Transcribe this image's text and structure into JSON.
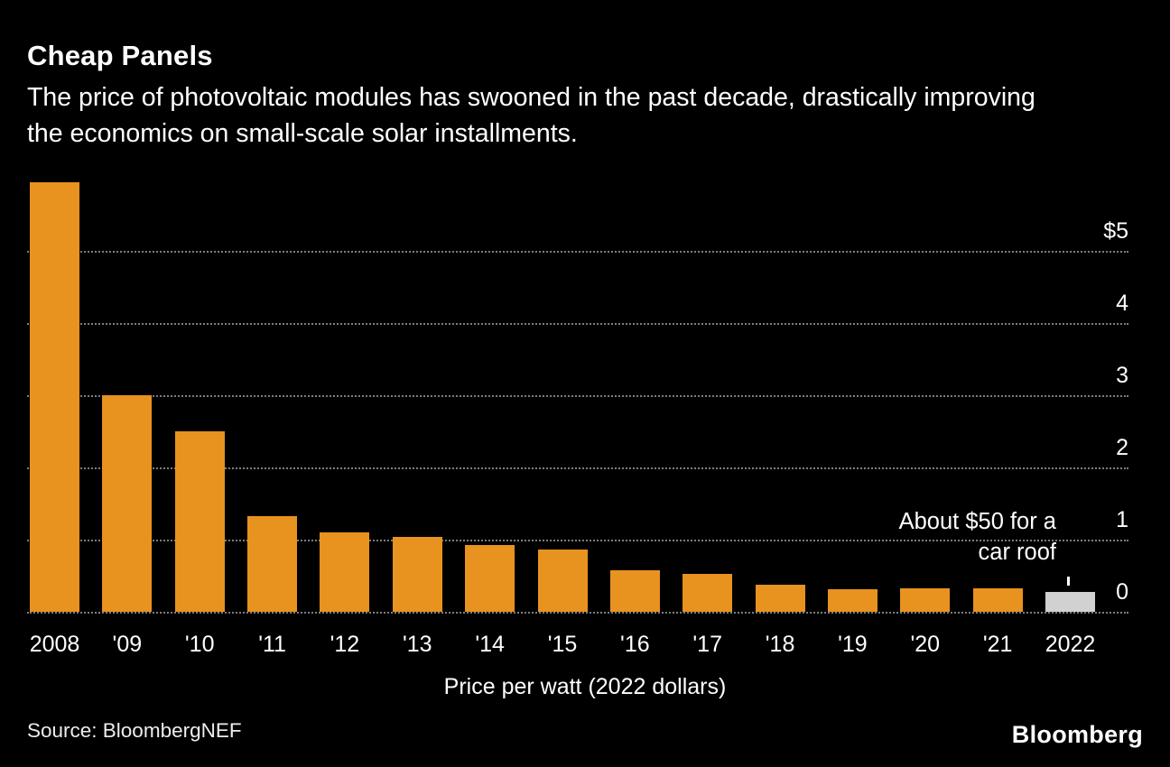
{
  "header": {
    "title": "Cheap Panels",
    "subtitle": "The price of photovoltaic modules has swooned in the past decade, drastically improving the economics on small-scale solar installments."
  },
  "chart_data": {
    "type": "bar",
    "categories": [
      "2008",
      "'09",
      "'10",
      "'11",
      "'12",
      "'13",
      "'14",
      "'15",
      "'16",
      "'17",
      "'18",
      "'19",
      "'20",
      "'21",
      "2022"
    ],
    "values": [
      5.95,
      3.0,
      2.5,
      1.32,
      1.1,
      1.04,
      0.92,
      0.86,
      0.58,
      0.53,
      0.37,
      0.31,
      0.32,
      0.33,
      0.28
    ],
    "title": "Cheap Panels",
    "xlabel": "Price per watt (2022 dollars)",
    "ylabel": "",
    "ylim": [
      0,
      6
    ],
    "yticks": [
      0,
      1,
      2,
      3,
      4,
      5
    ],
    "ytick_labels": [
      "0",
      "1",
      "2",
      "3",
      "4",
      "$5"
    ],
    "grid": "horizontal-dotted",
    "legend": false,
    "annotation": "About $50 for a car roof",
    "annotation_lines": [
      "About $50 for a",
      "car roof"
    ],
    "annotation_target_category": "2022",
    "bar_color": "#e8921f",
    "highlight_bar_color": "#d1d1d2",
    "highlight_index": 14
  },
  "colors": {
    "background": "#000000",
    "bar": "#e8921f",
    "highlight_bar": "#d1d1d2",
    "gridline": "#7d7d7d",
    "text": "#ffffff"
  },
  "footer": {
    "source": "Source: BloombergNEF",
    "logo": "Bloomberg"
  }
}
